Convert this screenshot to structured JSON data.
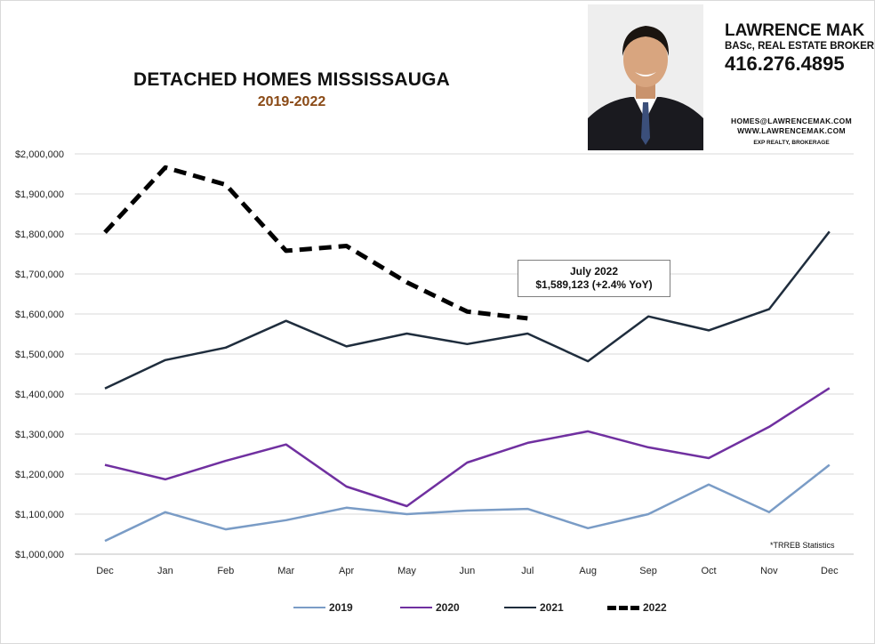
{
  "header": {
    "title": "DETACHED HOMES MISSISSAUGA",
    "subtitle": "2019-2022"
  },
  "agent": {
    "name": "LAWRENCE MAK",
    "role": "BASc, REAL ESTATE BROKER",
    "phone": "416.276.4895",
    "email": "HOMES@LAWRENCEMAK.COM",
    "website": "WWW.LAWRENCEMAK.COM",
    "brokerage": "EXP REALTY, BROKERAGE"
  },
  "callout": {
    "line1": "July 2022",
    "line2": "$1,589,123 (+2.4%  YoY)"
  },
  "footnote": "*TRREB Statistics",
  "chart_data": {
    "type": "line",
    "categories": [
      "Dec",
      "Jan",
      "Feb",
      "Mar",
      "Apr",
      "May",
      "Jun",
      "Jul",
      "Aug",
      "Sep",
      "Oct",
      "Nov",
      "Dec"
    ],
    "ylim": [
      1000000,
      2000000
    ],
    "y_ticks": [
      "$1,000,000",
      "$1,100,000",
      "$1,200,000",
      "$1,300,000",
      "$1,400,000",
      "$1,500,000",
      "$1,600,000",
      "$1,700,000",
      "$1,800,000",
      "$1,900,000",
      "$2,000,000"
    ],
    "grid": true,
    "legend_position": "bottom",
    "series": [
      {
        "name": "2019",
        "color": "#7a9cc6",
        "dashed": false,
        "values": [
          1033000,
          1105000,
          1062000,
          1085000,
          1116000,
          1100000,
          1109000,
          1113000,
          1065000,
          1100000,
          1174000,
          1105000,
          1223000
        ]
      },
      {
        "name": "2020",
        "color": "#7030a0",
        "dashed": false,
        "values": [
          1223000,
          1187000,
          1233000,
          1274000,
          1169000,
          1120000,
          1229000,
          1278000,
          1307000,
          1267000,
          1240000,
          1318000,
          1415000
        ]
      },
      {
        "name": "2021",
        "color": "#1f2d3d",
        "dashed": false,
        "values": [
          1414000,
          1485000,
          1516000,
          1583000,
          1519000,
          1551000,
          1525000,
          1551000,
          1482000,
          1594000,
          1559000,
          1612000,
          1806000
        ]
      },
      {
        "name": "2022",
        "color": "#000000",
        "dashed": true,
        "values": [
          1804000,
          1966000,
          1923000,
          1758000,
          1770000,
          1679000,
          1606000,
          1589123,
          null,
          null,
          null,
          null,
          null
        ]
      }
    ]
  }
}
